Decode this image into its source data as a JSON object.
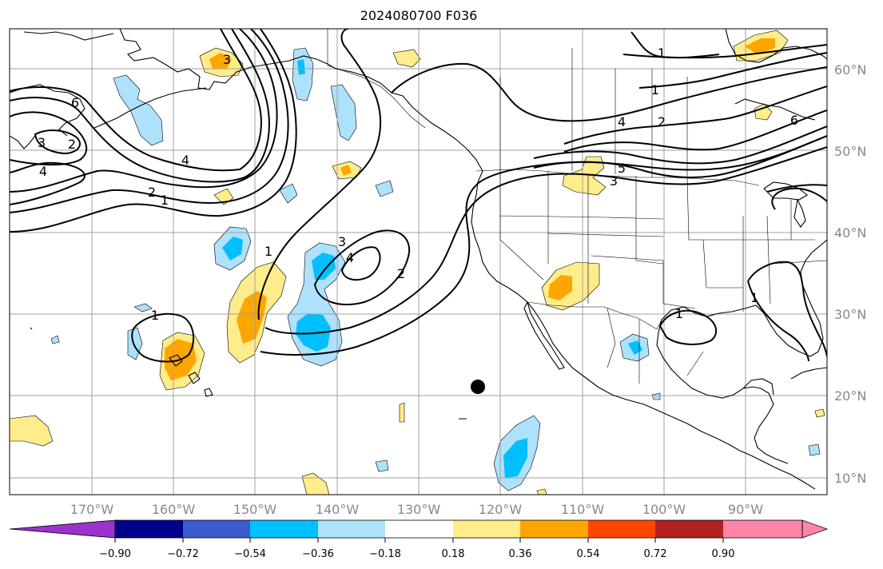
{
  "title": "2024080700 F036",
  "map": {
    "lat_labels": [
      "60°N",
      "50°N",
      "40°N",
      "30°N",
      "20°N",
      "10°N"
    ],
    "lon_labels": [
      "170°W",
      "160°W",
      "150°W",
      "140°W",
      "130°W",
      "120°W",
      "110°W",
      "100°W",
      "90°W"
    ],
    "marker": {
      "lon": -122.5,
      "lat": 21.0,
      "color": "#000000"
    }
  },
  "contour_labels": [
    "1",
    "2",
    "3",
    "4",
    "5",
    "6"
  ],
  "colorbar": {
    "ticks": [
      "−0.90",
      "−0.72",
      "−0.54",
      "−0.36",
      "−0.18",
      "0.18",
      "0.36",
      "0.54",
      "0.72",
      "0.90"
    ],
    "colors": [
      "#9933cc",
      "#00008b",
      "#3a5bcc",
      "#00bfff",
      "#aee1fb",
      "#ffffff",
      "#ffec8b",
      "#ffa500",
      "#ff4500",
      "#b22222",
      "#ff85a9",
      "#ff85a9"
    ]
  },
  "shading_colors": {
    "positive_light": "#ffec8b",
    "positive_mid": "#ffa500",
    "negative_light": "#aee1fb",
    "negative_mid": "#00bfff"
  }
}
